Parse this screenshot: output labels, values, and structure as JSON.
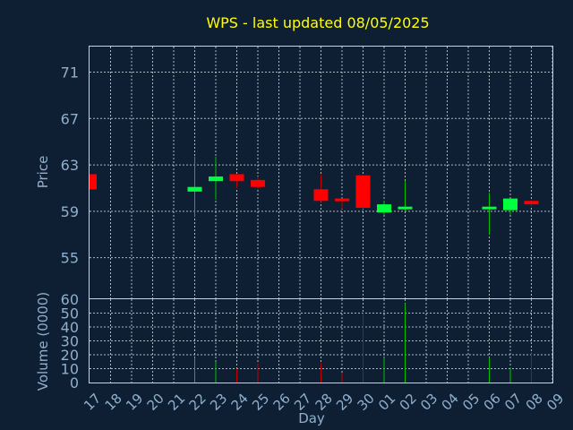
{
  "chart_data": {
    "type": "candlestick",
    "title": "WPS - last updated 08/05/2025",
    "xlabel": "Day",
    "price_axis": {
      "label": "Price",
      "ticks": [
        55,
        59,
        63,
        67,
        71
      ],
      "range": [
        51.5,
        73.2
      ]
    },
    "volume_axis": {
      "label": "Volume (0000)",
      "ticks": [
        0,
        10,
        20,
        30,
        40,
        50,
        60
      ],
      "range": [
        0,
        60
      ]
    },
    "x_ticks": [
      "17",
      "18",
      "19",
      "20",
      "21",
      "22",
      "23",
      "24",
      "25",
      "26",
      "27",
      "28",
      "29",
      "30",
      "01",
      "02",
      "03",
      "04",
      "05",
      "06",
      "07",
      "08",
      "09"
    ],
    "grid": true,
    "colors": {
      "up": "#00ff3c",
      "down": "#ff0000",
      "up_wick": "#00c000",
      "down_wick": "#c00000",
      "title": "#ffff00"
    },
    "candles": [
      {
        "day": "17",
        "open": 62.2,
        "high": 62.2,
        "low": 60.9,
        "close": 60.9,
        "volume": 0
      },
      {
        "day": "22",
        "open": 60.7,
        "high": 63.7,
        "low": 58.5,
        "close": 61.1,
        "volume": 18
      },
      {
        "day": "23",
        "open": 61.6,
        "high": 63.7,
        "low": 60.0,
        "close": 62.0,
        "volume": 15
      },
      {
        "day": "24",
        "open": 62.2,
        "high": 62.2,
        "low": 61.0,
        "close": 61.6,
        "volume": 10
      },
      {
        "day": "25",
        "open": 61.7,
        "high": 62.0,
        "low": 60.9,
        "close": 61.1,
        "volume": 14
      },
      {
        "day": "28",
        "open": 60.9,
        "high": 62.2,
        "low": 59.8,
        "close": 59.9,
        "volume": 14
      },
      {
        "day": "29",
        "open": 60.1,
        "high": 60.1,
        "low": 59.2,
        "close": 59.9,
        "volume": 7
      },
      {
        "day": "30",
        "open": 62.1,
        "high": 62.1,
        "low": 59.2,
        "close": 59.3,
        "volume": 50
      },
      {
        "day": "01",
        "open": 58.9,
        "high": 59.9,
        "low": 58.7,
        "close": 59.6,
        "volume": 18
      },
      {
        "day": "02",
        "open": 59.3,
        "high": 61.6,
        "low": 59.0,
        "close": 59.4,
        "volume": 57
      },
      {
        "day": "06",
        "open": 59.3,
        "high": 60.6,
        "low": 57.0,
        "close": 59.4,
        "volume": 18
      },
      {
        "day": "07",
        "open": 59.1,
        "high": 60.1,
        "low": 58.7,
        "close": 60.1,
        "volume": 11
      },
      {
        "day": "08",
        "open": 59.9,
        "high": 59.9,
        "low": 59.4,
        "close": 59.6,
        "volume": 21
      }
    ]
  }
}
